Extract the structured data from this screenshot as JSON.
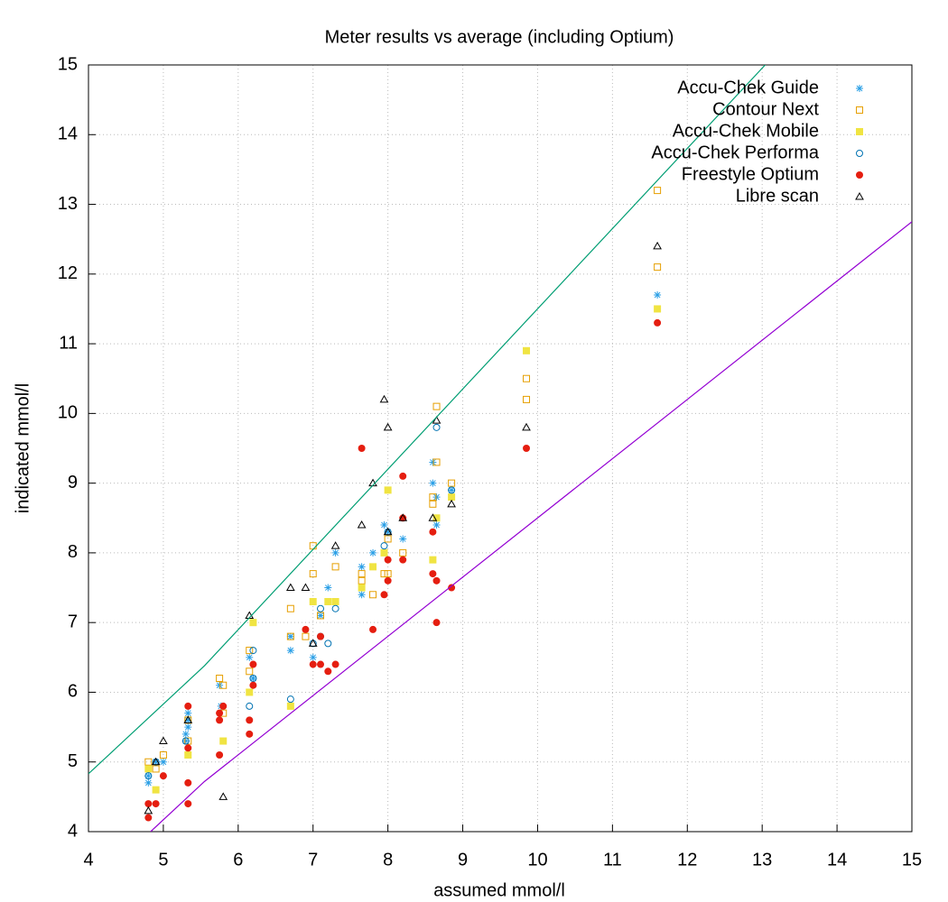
{
  "chart_data": {
    "type": "scatter",
    "title": "Meter results vs average (including Optium)",
    "x_label": "assumed mmol/l",
    "y_label": "indicated mmol/l",
    "xlim": [
      4,
      15
    ],
    "ylim": [
      4,
      15
    ],
    "xticks": [
      4,
      5,
      6,
      7,
      8,
      9,
      10,
      11,
      12,
      13,
      14,
      15
    ],
    "yticks": [
      4,
      5,
      6,
      7,
      8,
      9,
      10,
      11,
      12,
      13,
      14,
      15
    ],
    "grid": true,
    "legend": "top right",
    "series": [
      {
        "name": "Accu-Chek Guide",
        "color": "#2a9fe6",
        "marker": "asterisk",
        "x": [
          4.8,
          4.8,
          4.9,
          5.0,
          5.3,
          5.33,
          5.33,
          5.33,
          5.3,
          5.77,
          5.75,
          6.15,
          6.2,
          6.7,
          6.7,
          7.0,
          7.1,
          7.2,
          7.3,
          7.65,
          7.65,
          7.8,
          7.95,
          8.0,
          8.2,
          8.6,
          8.6,
          8.65,
          8.65,
          8.85,
          11.6
        ],
        "values": [
          4.7,
          4.8,
          5.0,
          5.0,
          5.4,
          5.5,
          5.6,
          5.7,
          5.3,
          5.8,
          6.1,
          6.5,
          6.2,
          6.6,
          6.8,
          6.5,
          7.1,
          7.5,
          8.0,
          7.8,
          7.4,
          8.0,
          8.4,
          8.3,
          8.2,
          9.3,
          9.0,
          8.8,
          8.4,
          8.9,
          11.7
        ]
      },
      {
        "name": "Contour Next",
        "color": "#e69f00",
        "marker": "square-open",
        "x": [
          4.8,
          4.9,
          5.0,
          5.33,
          5.33,
          5.75,
          5.8,
          5.8,
          6.15,
          6.15,
          6.7,
          6.7,
          6.9,
          7.0,
          7.0,
          7.1,
          7.3,
          7.65,
          7.65,
          7.8,
          7.95,
          8.0,
          8.0,
          8.2,
          8.6,
          8.6,
          8.65,
          8.65,
          8.85,
          9.85,
          9.85,
          11.6,
          11.6
        ],
        "values": [
          5.0,
          4.9,
          5.1,
          5.3,
          5.6,
          6.2,
          6.1,
          5.7,
          6.6,
          6.3,
          7.2,
          6.8,
          6.8,
          8.1,
          7.7,
          7.1,
          7.8,
          7.7,
          7.6,
          7.4,
          7.7,
          7.7,
          8.2,
          8.0,
          8.7,
          8.8,
          10.1,
          9.3,
          9.0,
          10.5,
          10.2,
          13.2,
          12.1
        ]
      },
      {
        "name": "Accu-Chek Mobile",
        "color": "#f0e442",
        "marker": "square",
        "x": [
          4.8,
          4.9,
          5.33,
          5.8,
          6.15,
          6.2,
          6.7,
          7.0,
          7.2,
          7.3,
          7.65,
          7.8,
          7.95,
          8.0,
          8.6,
          8.65,
          8.85,
          9.85,
          11.6
        ],
        "values": [
          4.9,
          4.6,
          5.1,
          5.3,
          6.0,
          7.0,
          5.8,
          7.3,
          7.3,
          7.3,
          7.5,
          7.8,
          8.0,
          8.9,
          7.9,
          8.5,
          8.8,
          10.9,
          11.5
        ]
      },
      {
        "name": "Accu-Chek Performa",
        "color": "#0072b2",
        "marker": "circle-open",
        "x": [
          4.8,
          4.9,
          5.3,
          6.15,
          6.2,
          6.2,
          6.7,
          7.0,
          7.1,
          7.1,
          7.2,
          7.3,
          7.95,
          8.0,
          8.65,
          8.85
        ],
        "values": [
          4.8,
          5.0,
          5.3,
          5.8,
          6.6,
          6.2,
          5.9,
          6.7,
          6.8,
          7.2,
          6.7,
          7.2,
          8.1,
          8.3,
          9.8,
          8.9
        ]
      },
      {
        "name": "Freestyle Optium",
        "color": "#e51e10",
        "marker": "circle",
        "x": [
          4.8,
          4.8,
          4.9,
          5.0,
          5.33,
          5.33,
          5.33,
          5.33,
          5.75,
          5.75,
          5.75,
          5.8,
          6.15,
          6.15,
          6.2,
          6.2,
          6.9,
          7.0,
          7.1,
          7.1,
          7.2,
          7.3,
          7.65,
          7.8,
          7.95,
          8.0,
          8.0,
          8.2,
          8.2,
          8.2,
          8.6,
          8.6,
          8.65,
          8.65,
          8.85,
          9.85,
          11.6
        ],
        "values": [
          4.4,
          4.2,
          4.4,
          4.8,
          5.8,
          5.2,
          4.7,
          4.4,
          5.7,
          5.6,
          5.1,
          5.8,
          5.6,
          5.4,
          6.4,
          6.1,
          6.9,
          6.4,
          6.8,
          6.4,
          6.3,
          6.4,
          9.5,
          6.9,
          7.4,
          7.9,
          7.6,
          9.1,
          8.5,
          7.9,
          8.3,
          7.7,
          7.6,
          7.0,
          7.5,
          9.5,
          11.3
        ]
      },
      {
        "name": "Libre scan",
        "color": "#000000",
        "marker": "triangle-open",
        "x": [
          4.8,
          4.9,
          5.0,
          5.33,
          5.8,
          6.15,
          6.7,
          6.9,
          7.0,
          7.3,
          7.65,
          7.8,
          7.95,
          8.0,
          8.0,
          8.2,
          8.6,
          8.65,
          8.85,
          9.85,
          11.6
        ],
        "values": [
          4.3,
          5.0,
          5.3,
          5.6,
          4.5,
          7.1,
          7.5,
          7.5,
          6.7,
          8.1,
          8.4,
          9.0,
          10.2,
          9.8,
          8.3,
          8.5,
          8.5,
          9.9,
          8.7,
          9.8,
          12.4
        ]
      },
      {
        "color": "#009e73",
        "marker": "line",
        "x": [
          4,
          5.55,
          13.04
        ],
        "values": [
          4.83,
          6.38,
          15
        ]
      },
      {
        "color": "#9400d3",
        "marker": "line",
        "x": [
          4.83,
          5.55,
          15
        ],
        "values": [
          4.0,
          4.72,
          12.75
        ]
      }
    ]
  }
}
